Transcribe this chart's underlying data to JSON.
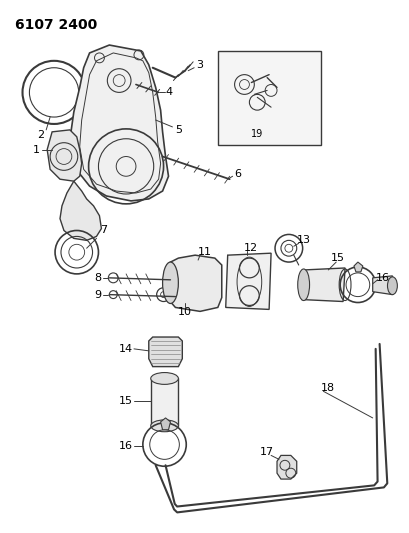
{
  "title": "6107 2400",
  "bg_color": "#ffffff",
  "line_color": "#3a3a3a",
  "label_color": "#000000",
  "figsize": [
    4.1,
    5.33
  ],
  "dpi": 100
}
